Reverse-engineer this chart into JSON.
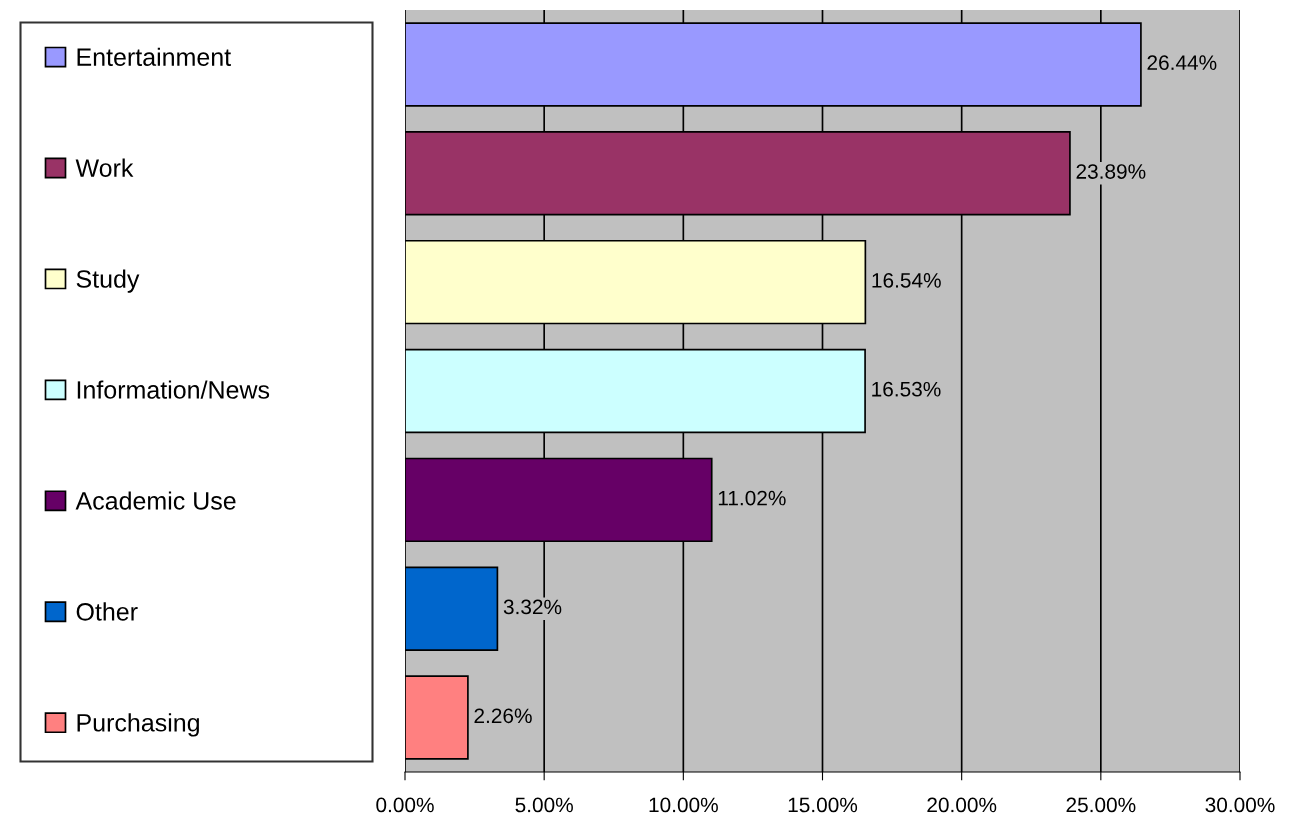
{
  "chart_data": {
    "type": "bar",
    "orientation": "horizontal",
    "categories": [
      null,
      null,
      null,
      null,
      null,
      null,
      null
    ],
    "series": [
      {
        "name": "Entertainment",
        "color": "#9999ff",
        "values": [
          26.44,
          null,
          null,
          null,
          null,
          null,
          null
        ],
        "value_labels": [
          "26.44%",
          null,
          null,
          null,
          null,
          null,
          null
        ]
      },
      {
        "name": "Work",
        "color": "#993366",
        "values": [
          null,
          23.89,
          null,
          null,
          null,
          null,
          null
        ],
        "value_labels": [
          null,
          "23.89%",
          null,
          null,
          null,
          null,
          null
        ]
      },
      {
        "name": "Study",
        "color": "#ffffcc",
        "values": [
          null,
          null,
          16.54,
          null,
          null,
          null,
          null
        ],
        "value_labels": [
          null,
          null,
          "16.54%",
          null,
          null,
          null,
          null
        ]
      },
      {
        "name": "Information/News",
        "color": "#ccffff",
        "values": [
          null,
          null,
          null,
          16.53,
          null,
          null,
          null
        ],
        "value_labels": [
          null,
          null,
          null,
          "16.53%",
          null,
          null,
          null
        ]
      },
      {
        "name": "Academic Use",
        "color": "#660066",
        "values": [
          null,
          null,
          null,
          null,
          11.02,
          null,
          null
        ],
        "value_labels": [
          null,
          null,
          null,
          null,
          "11.02%",
          null,
          null
        ]
      },
      {
        "name": "Other",
        "color": "#0066cc",
        "values": [
          null,
          null,
          null,
          null,
          null,
          3.32,
          null
        ],
        "value_labels": [
          null,
          null,
          null,
          null,
          null,
          "3.32%",
          null
        ]
      },
      {
        "name": "Purchasing",
        "color": "#ff8080",
        "values": [
          null,
          null,
          null,
          null,
          null,
          null,
          2.26
        ],
        "value_labels": [
          null,
          null,
          null,
          null,
          null,
          null,
          "2.26%"
        ]
      }
    ],
    "xlim": [
      0,
      30
    ],
    "xticks": [
      {
        "value": 0,
        "label": "0.00%"
      },
      {
        "value": 5,
        "label": "5.00%"
      },
      {
        "value": 10,
        "label": "10.00%"
      },
      {
        "value": 15,
        "label": "15.00%"
      },
      {
        "value": 20,
        "label": "20.00%"
      },
      {
        "value": 25,
        "label": "25.00%"
      },
      {
        "value": 30,
        "label": "30.00%"
      }
    ],
    "grid": "x",
    "legend": "left",
    "tick_labels": "x"
  }
}
